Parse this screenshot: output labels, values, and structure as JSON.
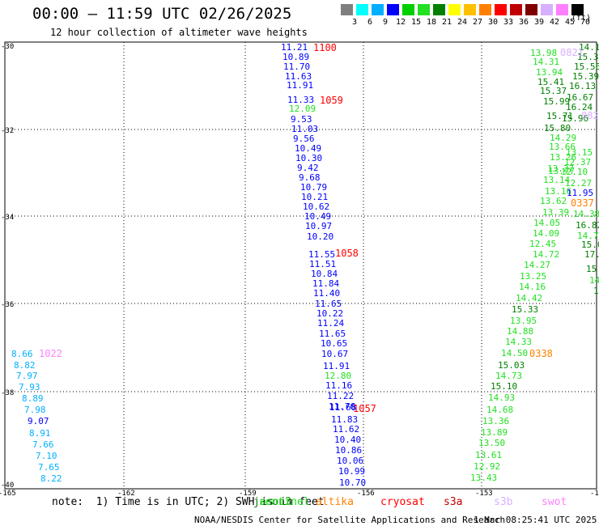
{
  "header": {
    "title": "00:00 – 11:59 UTC 02/26/2025",
    "subtitle": "12 hour collection of altimeter wave heights"
  },
  "legend": {
    "colors": [
      "#7f7f7f",
      "#00ffff",
      "#00b0ff",
      "#0000ff",
      "#00d000",
      "#22e022",
      "#008000",
      "#ffff00",
      "#ffc000",
      "#ff8000",
      "#ff0000",
      "#c00000",
      "#800000",
      "#d8b0ff",
      "#ff80ff",
      "#000000"
    ],
    "labels": [
      "3",
      "6",
      "9",
      "12",
      "15",
      "18",
      "21",
      "24",
      "27",
      "30",
      "33",
      "36",
      "39",
      "42",
      "45",
      "70"
    ],
    "unit": "(ft)"
  },
  "map": {
    "lat_labels": [
      "-30",
      "-32",
      "-34",
      "-36",
      "-38",
      "-40"
    ],
    "lon_labels": [
      "-165",
      "-162",
      "-159",
      "-156",
      "-153",
      "-15"
    ]
  },
  "tracks": [
    {
      "name": "track-west",
      "time": "1022",
      "time_color": "#ff80ff",
      "values": [
        {
          "v": "8.66",
          "c": "#00b0ff"
        },
        {
          "v": "8.82",
          "c": "#00b0ff"
        },
        {
          "v": "7.97",
          "c": "#00b0ff"
        },
        {
          "v": "7.93",
          "c": "#00b0ff"
        },
        {
          "v": "8.89",
          "c": "#00b0ff"
        },
        {
          "v": "7.98",
          "c": "#00b0ff"
        },
        {
          "v": "9.07",
          "c": "#0000ff"
        },
        {
          "v": "8.91",
          "c": "#00b0ff"
        },
        {
          "v": "7.66",
          "c": "#00b0ff"
        },
        {
          "v": "7.10",
          "c": "#00b0ff"
        },
        {
          "v": "7.65",
          "c": "#00b0ff"
        },
        {
          "v": "8.22",
          "c": "#00b0ff"
        }
      ]
    },
    {
      "name": "track-central",
      "times": [
        {
          "t": "1100",
          "c": "#ff0000"
        },
        {
          "t": "1059",
          "c": "#ff0000"
        },
        {
          "t": "1058",
          "c": "#ff0000"
        },
        {
          "t": "1057",
          "c": "#ff0000"
        }
      ],
      "values": [
        {
          "v": "11.21",
          "c": "#0000ff"
        },
        {
          "v": "10.89",
          "c": "#0000ff"
        },
        {
          "v": "11.70",
          "c": "#0000ff"
        },
        {
          "v": "11.63",
          "c": "#0000ff"
        },
        {
          "v": "11.91",
          "c": "#0000ff"
        },
        {
          "v": "11.33",
          "c": "#0000ff"
        },
        {
          "v": "12.09",
          "c": "#22e022"
        },
        {
          "v": "9.53",
          "c": "#0000ff"
        },
        {
          "v": "11.03",
          "c": "#0000ff"
        },
        {
          "v": "9.56",
          "c": "#0000ff"
        },
        {
          "v": "10.49",
          "c": "#0000ff"
        },
        {
          "v": "10.30",
          "c": "#0000ff"
        },
        {
          "v": "9.42",
          "c": "#0000ff"
        },
        {
          "v": "9.68",
          "c": "#0000ff"
        },
        {
          "v": "10.79",
          "c": "#0000ff"
        },
        {
          "v": "10.21",
          "c": "#0000ff"
        },
        {
          "v": "10.62",
          "c": "#0000ff"
        },
        {
          "v": "10.49",
          "c": "#0000ff"
        },
        {
          "v": "10.97",
          "c": "#0000ff"
        },
        {
          "v": "10.20",
          "c": "#0000ff"
        },
        {
          "v": "11.55",
          "c": "#0000ff"
        },
        {
          "v": "11.51",
          "c": "#0000ff"
        },
        {
          "v": "10.84",
          "c": "#0000ff"
        },
        {
          "v": "11.84",
          "c": "#0000ff"
        },
        {
          "v": "11.40",
          "c": "#0000ff"
        },
        {
          "v": "11.65",
          "c": "#0000ff"
        },
        {
          "v": "10.22",
          "c": "#0000ff"
        },
        {
          "v": "11.24",
          "c": "#0000ff"
        },
        {
          "v": "11.65",
          "c": "#0000ff"
        },
        {
          "v": "10.65",
          "c": "#0000ff"
        },
        {
          "v": "10.67",
          "c": "#0000ff"
        },
        {
          "v": "11.91",
          "c": "#0000ff"
        },
        {
          "v": "12.80",
          "c": "#22e022"
        },
        {
          "v": "11.16",
          "c": "#0000ff"
        },
        {
          "v": "11.22",
          "c": "#0000ff"
        },
        {
          "v": "11.76",
          "c": "#0000ff"
        },
        {
          "v": "11.68",
          "c": "#0000ff"
        },
        {
          "v": "11.83",
          "c": "#0000ff"
        },
        {
          "v": "11.62",
          "c": "#0000ff"
        },
        {
          "v": "10.40",
          "c": "#0000ff"
        },
        {
          "v": "10.86",
          "c": "#0000ff"
        },
        {
          "v": "10.06",
          "c": "#0000ff"
        },
        {
          "v": "10.99",
          "c": "#0000ff"
        },
        {
          "v": "10.70",
          "c": "#0000ff"
        }
      ]
    },
    {
      "name": "track-east",
      "times": [
        {
          "t": "0338",
          "c": "#ff8000"
        },
        {
          "t": "0337",
          "c": "#ff8000"
        },
        {
          "t": "0821",
          "c": "#d8b0ff"
        },
        {
          "t": "082",
          "c": "#d8b0ff"
        }
      ],
      "values": [
        {
          "v": "13.98",
          "c": "#22e022"
        },
        {
          "v": "14.31",
          "c": "#22e022"
        },
        {
          "v": "13.94",
          "c": "#22e022"
        },
        {
          "v": "15.41",
          "c": "#008000"
        },
        {
          "v": "15.37",
          "c": "#008000"
        },
        {
          "v": "15.99",
          "c": "#008000"
        },
        {
          "v": "15.71",
          "c": "#008000"
        },
        {
          "v": "15.80",
          "c": "#008000"
        },
        {
          "v": "14.29",
          "c": "#22e022"
        },
        {
          "v": "13.66",
          "c": "#22e022"
        },
        {
          "v": "13.26",
          "c": "#22e022"
        },
        {
          "v": "13.27",
          "c": "#22e022"
        },
        {
          "v": "13.77",
          "c": "#22e022"
        },
        {
          "v": "13.14",
          "c": "#22e022"
        },
        {
          "v": "13.16",
          "c": "#22e022"
        },
        {
          "v": "13.62",
          "c": "#22e022"
        },
        {
          "v": "13.39",
          "c": "#22e022"
        },
        {
          "v": "14.05",
          "c": "#22e022"
        },
        {
          "v": "14.09",
          "c": "#22e022"
        },
        {
          "v": "12.45",
          "c": "#22e022"
        },
        {
          "v": "14.72",
          "c": "#22e022"
        },
        {
          "v": "14.27",
          "c": "#22e022"
        },
        {
          "v": "13.25",
          "c": "#22e022"
        },
        {
          "v": "14.16",
          "c": "#22e022"
        },
        {
          "v": "14.42",
          "c": "#22e022"
        },
        {
          "v": "15.33",
          "c": "#008000"
        },
        {
          "v": "13.95",
          "c": "#22e022"
        },
        {
          "v": "14.88",
          "c": "#22e022"
        },
        {
          "v": "14.33",
          "c": "#22e022"
        },
        {
          "v": "14.50",
          "c": "#22e022"
        },
        {
          "v": "15.03",
          "c": "#008000"
        },
        {
          "v": "14.73",
          "c": "#22e022"
        },
        {
          "v": "15.10",
          "c": "#008000"
        },
        {
          "v": "14.93",
          "c": "#22e022"
        },
        {
          "v": "14.68",
          "c": "#22e022"
        },
        {
          "v": "13.36",
          "c": "#22e022"
        },
        {
          "v": "13.89",
          "c": "#22e022"
        },
        {
          "v": "13.50",
          "c": "#22e022"
        },
        {
          "v": "13.61",
          "c": "#22e022"
        },
        {
          "v": "12.92",
          "c": "#22e022"
        },
        {
          "v": "13.43",
          "c": "#22e022"
        },
        {
          "v": "14.1",
          "c": "#008000"
        },
        {
          "v": "15.34",
          "c": "#008000"
        },
        {
          "v": "15.56",
          "c": "#008000"
        },
        {
          "v": "15.39",
          "c": "#008000"
        },
        {
          "v": "16.13",
          "c": "#008000"
        },
        {
          "v": "16.67",
          "c": "#008000"
        },
        {
          "v": "16.24",
          "c": "#008000"
        },
        {
          "v": "15.96",
          "c": "#008000"
        },
        {
          "v": "13.15",
          "c": "#22e022"
        },
        {
          "v": "12.37",
          "c": "#22e022"
        },
        {
          "v": "12.10",
          "c": "#22e022"
        },
        {
          "v": "12.27",
          "c": "#22e022"
        },
        {
          "v": "11.95",
          "c": "#0000ff"
        },
        {
          "v": "14.38",
          "c": "#22e022"
        },
        {
          "v": "16.82",
          "c": "#008000"
        },
        {
          "v": "14.7",
          "c": "#22e022"
        },
        {
          "v": "15.0",
          "c": "#008000"
        },
        {
          "v": "17.1",
          "c": "#008000"
        },
        {
          "v": "15.",
          "c": "#008000"
        },
        {
          "v": "14",
          "c": "#22e022"
        },
        {
          "v": "15",
          "c": "#008000"
        }
      ]
    }
  ],
  "satellites": [
    {
      "name": "jason3",
      "label": "jason3",
      "color": "#008000"
    },
    {
      "name": "sentinel",
      "label": "sentinel",
      "color": "#22e022"
    },
    {
      "name": "altika",
      "label": "altika",
      "color": "#ff8000"
    },
    {
      "name": "cryosat",
      "label": "cryosat",
      "color": "#ff0000"
    },
    {
      "name": "s3a",
      "label": "s3a",
      "color": "#c00000"
    },
    {
      "name": "s3b",
      "label": "s3b",
      "color": "#d8b0ff"
    },
    {
      "name": "swot",
      "label": "swot",
      "color": "#ff80ff"
    }
  ],
  "note": "note:  1) Time is in UTC; 2) SWH is in feet",
  "footer": {
    "center": "NOAA/NESDIS Center for Satellite Applications and Research",
    "timestamp": "1 Mar 08:25:41 UTC 2025"
  }
}
